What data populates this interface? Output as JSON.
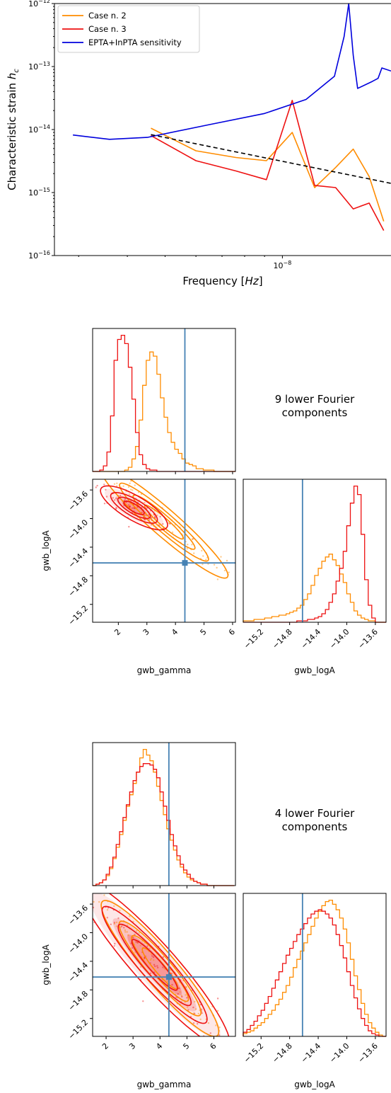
{
  "chart_data": [
    {
      "type": "line",
      "xlabel": "Frequency [Hz]",
      "ylabel": "Characteristic strain h_c",
      "xscale": "log",
      "yscale": "log",
      "xlim": [
        2.6e-09,
        1.9e-08
      ],
      "ylim": [
        1e-16,
        1e-12
      ],
      "x_tick_label": "10^-8",
      "y_tick_labels": [
        "10^-12",
        "10^-13",
        "10^-14",
        "10^-15",
        "10^-16"
      ],
      "legend_position": "top-left",
      "series": [
        {
          "name": "Case n. 2",
          "color": "#ff8c00",
          "x": [
            4.6e-09,
            6e-09,
            7.6e-09,
            9.1e-09,
            1.06e-08,
            1.21e-08,
            1.37e-08,
            1.52e-08,
            1.67e-08,
            1.82e-08
          ],
          "y": [
            1.05e-14,
            4.6e-15,
            3.6e-15,
            3.2e-15,
            9e-15,
            1.2e-15,
            2.5e-15,
            4.9e-15,
            1.8e-15,
            3.5e-16
          ]
        },
        {
          "name": "Case n. 3",
          "color": "#ee1111",
          "x": [
            4.6e-09,
            6e-09,
            7.6e-09,
            9.1e-09,
            1.06e-08,
            1.21e-08,
            1.37e-08,
            1.52e-08,
            1.67e-08,
            1.82e-08
          ],
          "y": [
            8e-15,
            3.2e-15,
            2.2e-15,
            1.6e-15,
            2.9e-14,
            1.3e-15,
            1.2e-15,
            5.5e-16,
            6.8e-16,
            2.5e-16
          ]
        },
        {
          "name": "EPTA+InPTA sensitivity",
          "color": "#0000dd",
          "x": [
            2.9e-09,
            3.6e-09,
            4.5e-09,
            6.5e-09,
            9e-09,
            1.15e-08,
            1.36e-08,
            1.44e-08,
            1.48e-08,
            1.52e-08,
            1.56e-08,
            1.7e-08,
            1.76e-08,
            1.8e-08,
            1.9e-08
          ],
          "y": [
            8.2e-15,
            7e-15,
            7.5e-15,
            1.2e-14,
            1.8e-14,
            3e-14,
            7e-14,
            3e-13,
            1e-12,
            1.5e-13,
            4.5e-14,
            5.8e-14,
            6.5e-14,
            9.5e-14,
            8.5e-14
          ]
        },
        {
          "name": "",
          "color": "#000000",
          "dashed": true,
          "x": [
            4.6e-09,
            1.9e-08
          ],
          "y": [
            8.3e-15,
            1.4e-15
          ]
        }
      ]
    },
    {
      "type": "histogram",
      "panel_label": "9 lower Fourier components",
      "xlabel": "gwb_gamma",
      "ylabel": "gwb_logA",
      "gamma_ticks": [
        "2",
        "3",
        "4",
        "5",
        "6"
      ],
      "logA_ticks": [
        "−13.6",
        "−14.0",
        "−14.4",
        "−14.8",
        "−15.2"
      ],
      "gamma_range": [
        1.1,
        6.1
      ],
      "logA_range": [
        -15.45,
        -13.45
      ],
      "injection": {
        "gamma": 4.33,
        "logA": -14.62
      },
      "gamma_hist": {
        "edges_start": 1.1,
        "bin_width": 0.125,
        "case2": [
          0,
          0,
          0,
          0,
          0,
          0,
          0,
          0,
          0,
          1,
          3,
          9,
          18,
          37,
          62,
          80,
          86,
          83,
          70,
          53,
          39,
          28,
          21,
          16,
          13,
          9,
          6,
          5,
          4,
          2,
          2,
          1,
          1,
          1,
          0,
          0,
          0,
          0,
          0,
          0
        ],
        "case3": [
          0,
          0,
          1,
          4,
          14,
          40,
          80,
          95,
          98,
          92,
          75,
          52,
          28,
          12,
          5,
          2,
          1,
          1,
          0,
          0,
          0,
          0,
          0,
          0,
          0,
          0,
          0,
          0,
          0,
          0,
          0,
          0,
          0,
          0,
          0,
          0,
          0,
          0,
          0,
          0
        ]
      },
      "logA_hist": {
        "edges_start": -15.45,
        "bin_width": 0.05,
        "case2": [
          1,
          1,
          1,
          2,
          2,
          2,
          3,
          3,
          4,
          4,
          5,
          5,
          6,
          7,
          8,
          10,
          12,
          16,
          20,
          26,
          33,
          38,
          43,
          46,
          48,
          44,
          40,
          34,
          28,
          20,
          14,
          8,
          5,
          3,
          2,
          1,
          1,
          0,
          0,
          0
        ],
        "case3": [
          0,
          0,
          0,
          0,
          0,
          0,
          0,
          0,
          0,
          0,
          0,
          0,
          0,
          0,
          0,
          1,
          1,
          1,
          2,
          2,
          3,
          4,
          6,
          9,
          14,
          20,
          29,
          38,
          50,
          68,
          84,
          96,
          90,
          62,
          30,
          12,
          3,
          0,
          0,
          0
        ]
      },
      "contours": {
        "case2": {
          "mean": [
            3.6,
            -14.05
          ],
          "sd": [
            0.8,
            0.28
          ],
          "corr": -0.95
        },
        "case3": {
          "mean": [
            2.55,
            -13.85
          ],
          "sd": [
            0.42,
            0.11
          ],
          "corr": -0.78
        }
      }
    },
    {
      "type": "histogram",
      "panel_label": "4 lower Fourier components",
      "xlabel": "gwb_gamma",
      "ylabel": "gwb_logA",
      "gamma_ticks": [
        "2",
        "3",
        "4",
        "5",
        "6"
      ],
      "logA_ticks": [
        "−13.6",
        "−14.0",
        "−14.4",
        "−14.8",
        "−15.2"
      ],
      "gamma_range": [
        1.5,
        6.8
      ],
      "logA_range": [
        -15.45,
        -13.45
      ],
      "injection": {
        "gamma": 4.33,
        "logA": -14.62
      },
      "gamma_hist": {
        "edges_start": 1.5,
        "bin_width": 0.125,
        "case2": [
          0,
          1,
          2,
          4,
          7,
          12,
          19,
          27,
          36,
          46,
          56,
          64,
          72,
          80,
          90,
          96,
          92,
          88,
          80,
          70,
          60,
          50,
          40,
          32,
          25,
          18,
          13,
          9,
          6,
          4,
          3,
          2,
          1,
          1,
          0,
          0,
          0,
          0,
          0,
          0,
          0,
          0
        ],
        "case3": [
          0,
          1,
          2,
          4,
          8,
          13,
          20,
          29,
          38,
          48,
          57,
          66,
          74,
          80,
          84,
          86,
          86,
          85,
          82,
          76,
          66,
          56,
          46,
          36,
          28,
          21,
          15,
          11,
          8,
          5,
          3,
          2,
          1,
          1,
          0,
          0,
          0,
          0,
          0,
          0,
          0,
          0
        ]
      },
      "logA_hist": {
        "edges_start": -15.45,
        "bin_width": 0.05,
        "case2": [
          2,
          3,
          4,
          6,
          8,
          10,
          13,
          16,
          19,
          23,
          27,
          32,
          37,
          43,
          50,
          56,
          62,
          68,
          74,
          80,
          86,
          91,
          95,
          98,
          99,
          96,
          92,
          86,
          78,
          68,
          56,
          44,
          34,
          24,
          16,
          10,
          6,
          3,
          1,
          0
        ],
        "case3": [
          3,
          5,
          8,
          11,
          15,
          19,
          24,
          29,
          35,
          41,
          47,
          53,
          59,
          64,
          69,
          74,
          78,
          82,
          86,
          89,
          91,
          92,
          91,
          89,
          86,
          81,
          74,
          66,
          57,
          47,
          37,
          28,
          20,
          13,
          8,
          4,
          2,
          1,
          0,
          0
        ]
      },
      "contours": {
        "case2": {
          "mean": [
            4.0,
            -14.5
          ],
          "sd": [
            0.78,
            0.34
          ],
          "corr": -0.93
        },
        "case3": {
          "mean": [
            3.8,
            -14.45
          ],
          "sd": [
            1.0,
            0.42
          ],
          "corr": -0.93
        }
      }
    }
  ]
}
